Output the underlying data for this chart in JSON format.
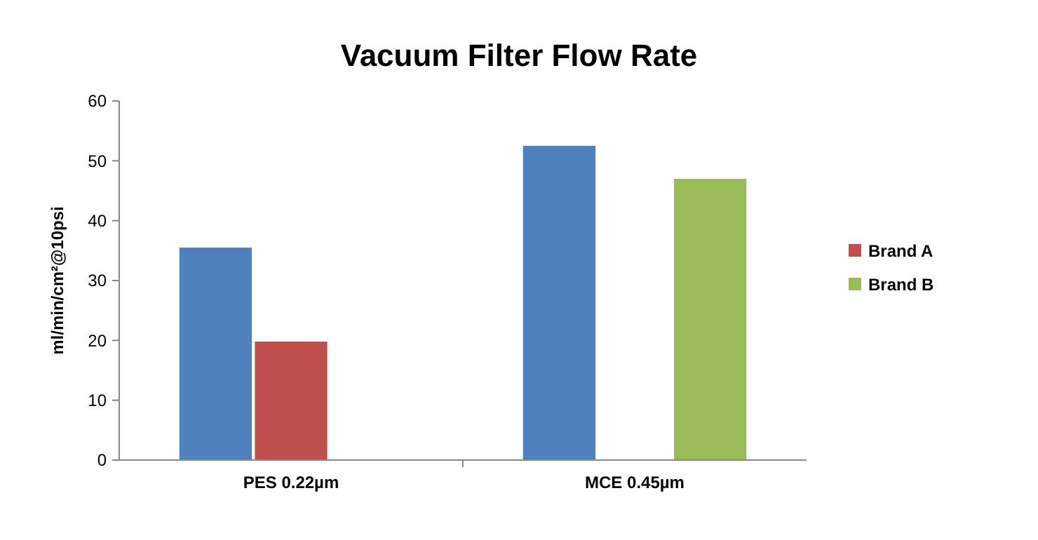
{
  "chart_data": {
    "type": "bar",
    "title": "Vacuum Filter Flow Rate",
    "ylabel": "ml/min/cm²@10psi",
    "categories": [
      "PES 0.22µm",
      "MCE 0.45µm"
    ],
    "series": [
      {
        "color": "#4f81bd",
        "values": [
          35.5,
          52.5
        ]
      },
      {
        "name": "Brand A",
        "color": "#c0504d",
        "values": [
          19.8,
          null
        ]
      },
      {
        "name": "Brand B",
        "color": "#9bbb59",
        "values": [
          null,
          47
        ]
      }
    ],
    "ylim": [
      0,
      60
    ],
    "yticks": [
      0,
      10,
      20,
      30,
      40,
      50,
      60
    ],
    "legend": "right"
  }
}
